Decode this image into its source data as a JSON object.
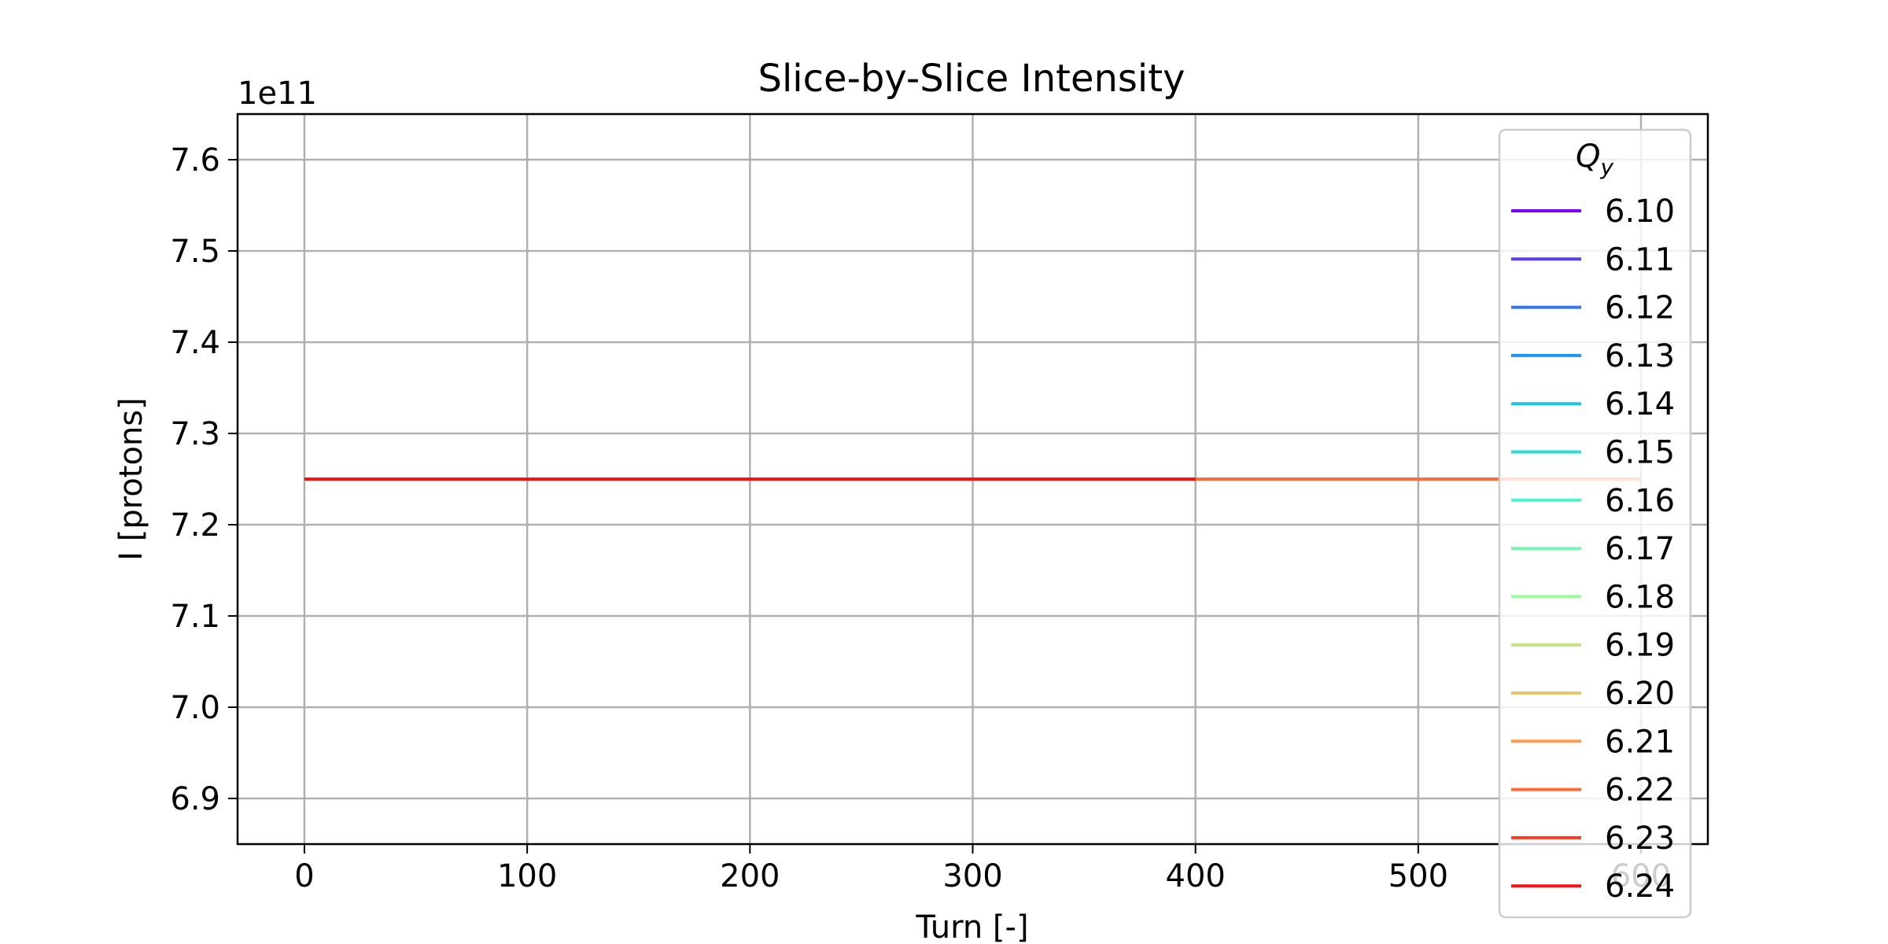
{
  "chart_data": {
    "type": "line",
    "title": "Slice-by-Slice Intensity",
    "xlabel": "Turn [-]",
    "ylabel": "I [protons]",
    "y_offset_label": "1e11",
    "y_multiplier": 100000000000.0,
    "xlim": [
      -30,
      630
    ],
    "ylim": [
      6.85,
      7.65
    ],
    "xticks": [
      0,
      100,
      200,
      300,
      400,
      500,
      600
    ],
    "xtick_labels": [
      "0",
      "100",
      "200",
      "300",
      "400",
      "500",
      "600"
    ],
    "yticks": [
      6.9,
      7.0,
      7.1,
      7.2,
      7.3,
      7.4,
      7.5,
      7.6
    ],
    "ytick_labels": [
      "6.9",
      "7.0",
      "7.1",
      "7.2",
      "7.3",
      "7.4",
      "7.5",
      "7.6"
    ],
    "grid": true,
    "legend": {
      "title": "Q_y",
      "position": "upper-right"
    },
    "series": [
      {
        "name": "6.10",
        "color": "#8000ff",
        "x": [
          0,
          600
        ],
        "y": [
          7.25,
          7.25
        ]
      },
      {
        "name": "6.11",
        "color": "#5a3ff6",
        "x": [
          0,
          600
        ],
        "y": [
          7.25,
          7.25
        ]
      },
      {
        "name": "6.12",
        "color": "#3278f4",
        "x": [
          0,
          600
        ],
        "y": [
          7.25,
          7.25
        ]
      },
      {
        "name": "6.13",
        "color": "#1996f3",
        "x": [
          0,
          600
        ],
        "y": [
          7.25,
          7.25
        ]
      },
      {
        "name": "6.14",
        "color": "#1cc5e6",
        "x": [
          0,
          600
        ],
        "y": [
          7.25,
          7.25
        ]
      },
      {
        "name": "6.15",
        "color": "#2adddd",
        "x": [
          0,
          600
        ],
        "y": [
          7.25,
          7.25
        ]
      },
      {
        "name": "6.16",
        "color": "#4cf2ce",
        "x": [
          0,
          600
        ],
        "y": [
          7.25,
          7.25
        ]
      },
      {
        "name": "6.17",
        "color": "#76f9b2",
        "x": [
          0,
          600
        ],
        "y": [
          7.25,
          7.25
        ]
      },
      {
        "name": "6.18",
        "color": "#9cfa9c",
        "x": [
          0,
          600
        ],
        "y": [
          7.25,
          7.25
        ]
      },
      {
        "name": "6.19",
        "color": "#c4e380",
        "x": [
          0,
          600
        ],
        "y": [
          7.25,
          7.25
        ]
      },
      {
        "name": "6.20",
        "color": "#e6c66b",
        "x": [
          0,
          600
        ],
        "y": [
          7.25,
          7.25
        ]
      },
      {
        "name": "6.21",
        "color": "#ff9c4e",
        "x": [
          0,
          600
        ],
        "y": [
          7.25,
          7.25
        ]
      },
      {
        "name": "6.22",
        "color": "#ff6b36",
        "x": [
          0,
          600
        ],
        "y": [
          7.25,
          7.25
        ]
      },
      {
        "name": "6.23",
        "color": "#ff3a1f",
        "x": [
          0,
          400
        ],
        "y": [
          7.25,
          7.25
        ]
      },
      {
        "name": "6.24",
        "color": "#ff0e0e",
        "x": [
          0,
          400
        ],
        "y": [
          7.25,
          7.25
        ]
      }
    ]
  }
}
